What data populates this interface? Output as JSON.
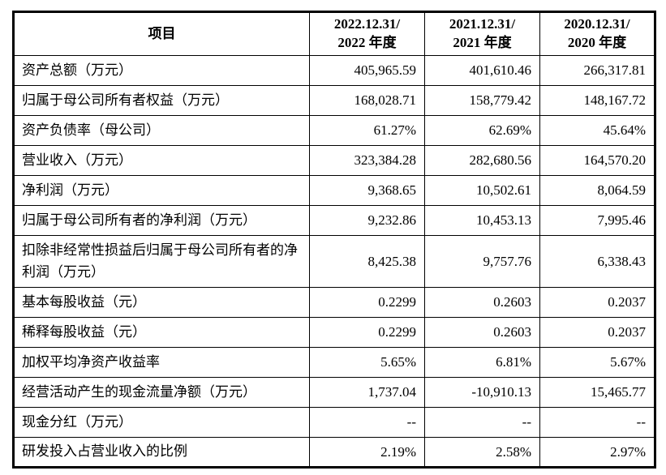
{
  "table": {
    "columns": [
      "项目",
      "2022.12.31/\n2022 年度",
      "2021.12.31/\n2021 年度",
      "2020.12.31/\n2020 年度"
    ],
    "rows": [
      {
        "label": "资产总额（万元）",
        "values": [
          "405,965.59",
          "401,610.46",
          "266,317.81"
        ]
      },
      {
        "label": "归属于母公司所有者权益（万元）",
        "values": [
          "168,028.71",
          "158,779.42",
          "148,167.72"
        ]
      },
      {
        "label": "资产负债率（母公司）",
        "values": [
          "61.27%",
          "62.69%",
          "45.64%"
        ]
      },
      {
        "label": "营业收入（万元）",
        "values": [
          "323,384.28",
          "282,680.56",
          "164,570.20"
        ]
      },
      {
        "label": "净利润（万元）",
        "values": [
          "9,368.65",
          "10,502.61",
          "8,064.59"
        ]
      },
      {
        "label": "归属于母公司所有者的净利润（万元）",
        "values": [
          "9,232.86",
          "10,453.13",
          "7,995.46"
        ]
      },
      {
        "label": "扣除非经常性损益后归属于母公司所有者的净利润（万元）",
        "values": [
          "8,425.38",
          "9,757.76",
          "6,338.43"
        ]
      },
      {
        "label": "基本每股收益（元）",
        "values": [
          "0.2299",
          "0.2603",
          "0.2037"
        ]
      },
      {
        "label": "稀释每股收益（元）",
        "values": [
          "0.2299",
          "0.2603",
          "0.2037"
        ]
      },
      {
        "label": "加权平均净资产收益率",
        "values": [
          "5.65%",
          "6.81%",
          "5.67%"
        ]
      },
      {
        "label": "经营活动产生的现金流量净额（万元）",
        "values": [
          "1,737.04",
          "-10,910.13",
          "15,465.77"
        ]
      },
      {
        "label": "现金分红（万元）",
        "values": [
          "--",
          "--",
          "--"
        ]
      },
      {
        "label": "研发投入占营业收入的比例",
        "values": [
          "2.19%",
          "2.58%",
          "2.97%"
        ]
      }
    ]
  }
}
